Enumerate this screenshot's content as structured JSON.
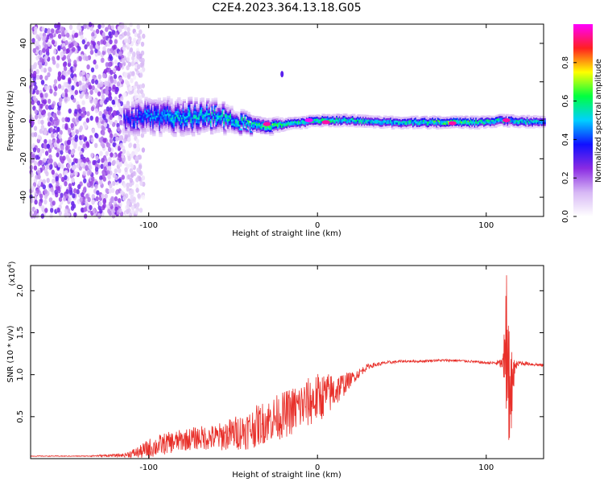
{
  "title": "C2E4.2023.364.13.18.G05",
  "colors": {
    "series": "#e8302a",
    "axis": "#000000",
    "background": "#ffffff"
  },
  "chart_data": [
    {
      "type": "heatmap",
      "title": "C2E4.2023.364.13.18.G05",
      "xlabel": "Height of straight line (km)",
      "ylabel": "Frequency (Hz)",
      "xlim": [
        -170,
        134
      ],
      "ylim": [
        -50,
        50
      ],
      "xticks": [
        -100,
        0,
        100
      ],
      "yticks": [
        -40,
        -20,
        0,
        20,
        40
      ],
      "colorbar": {
        "label": "Normalized spectral amplitude",
        "range": [
          0.0,
          1.0
        ],
        "ticks": [
          "0.0",
          "0.2",
          "0.4",
          "0.6",
          "0.8"
        ],
        "colormap": [
          "#ffffff",
          "#d7b8f5",
          "#8a2be2",
          "#1010ff",
          "#00d0ff",
          "#00ff40",
          "#ffff00",
          "#ff2020",
          "#ff00ff"
        ]
      },
      "noise_region": {
        "x_end": -103,
        "dense_x_end": -115
      },
      "ridge": [
        {
          "x": -115,
          "freq": 1,
          "amplitude": 0.35,
          "halfwidth_hz": 5
        },
        {
          "x": -100,
          "freq": 2,
          "amplitude": 0.45,
          "halfwidth_hz": 6
        },
        {
          "x": -80,
          "freq": 2,
          "amplitude": 0.5,
          "halfwidth_hz": 6
        },
        {
          "x": -60,
          "freq": 2,
          "amplitude": 0.5,
          "halfwidth_hz": 5
        },
        {
          "x": -40,
          "freq": -2,
          "amplitude": 0.55,
          "halfwidth_hz": 3
        },
        {
          "x": -30,
          "freq": -3,
          "amplitude": 0.6,
          "halfwidth_hz": 3
        },
        {
          "x": -20,
          "freq": -2,
          "amplitude": 0.6,
          "halfwidth_hz": 2
        },
        {
          "x": -10,
          "freq": -1,
          "amplitude": 0.55,
          "halfwidth_hz": 2
        },
        {
          "x": 0,
          "freq": 0,
          "amplitude": 0.6,
          "halfwidth_hz": 2
        },
        {
          "x": 20,
          "freq": 0,
          "amplitude": 0.55,
          "halfwidth_hz": 2
        },
        {
          "x": 40,
          "freq": -1,
          "amplitude": 0.5,
          "halfwidth_hz": 2
        },
        {
          "x": 60,
          "freq": -1,
          "amplitude": 0.55,
          "halfwidth_hz": 2
        },
        {
          "x": 80,
          "freq": -1,
          "amplitude": 0.65,
          "halfwidth_hz": 2
        },
        {
          "x": 95,
          "freq": -1,
          "amplitude": 0.55,
          "halfwidth_hz": 2
        },
        {
          "x": 110,
          "freq": 0,
          "amplitude": 0.55,
          "halfwidth_hz": 2
        },
        {
          "x": 134,
          "freq": -1,
          "amplitude": 0.5,
          "halfwidth_hz": 2
        }
      ],
      "hotspots": [
        {
          "x": -30,
          "freq": -2,
          "amplitude": 0.95
        },
        {
          "x": -5,
          "freq": 0,
          "amplitude": 1.0
        },
        {
          "x": 5,
          "freq": -1,
          "amplitude": 0.95
        },
        {
          "x": 80,
          "freq": -1.5,
          "amplitude": 0.95
        },
        {
          "x": 112,
          "freq": 0,
          "amplitude": 0.95
        }
      ],
      "isolated_spot": {
        "x": -21,
        "freq": 24,
        "amplitude": 0.3
      }
    },
    {
      "type": "line",
      "xlabel": "Height of straight line (km)",
      "ylabel": "SNR (10 * v/v)",
      "y_multiplier": "(x10",
      "y_multiplier_exp": "4",
      "y_multiplier_close": ")",
      "xlim": [
        -170,
        134
      ],
      "ylim": [
        0.0,
        2.3
      ],
      "xticks": [
        -100,
        0,
        100
      ],
      "yticks": [
        "0.5",
        "1.0",
        "1.5",
        "2.0"
      ],
      "series": [
        {
          "color": "#e8302a",
          "x": [
            -170,
            -140,
            -115,
            -105,
            -100,
            -90,
            -80,
            -70,
            -60,
            -50,
            -40,
            -30,
            -20,
            -10,
            0,
            10,
            20,
            30,
            40,
            50,
            60,
            70,
            80,
            90,
            100,
            105,
            110,
            112,
            114,
            117,
            120,
            125,
            134
          ],
          "y": [
            0.03,
            0.03,
            0.04,
            0.08,
            0.12,
            0.18,
            0.22,
            0.25,
            0.25,
            0.3,
            0.35,
            0.45,
            0.52,
            0.62,
            0.72,
            0.8,
            0.95,
            1.1,
            1.14,
            1.16,
            1.16,
            1.17,
            1.17,
            1.16,
            1.14,
            1.14,
            1.13,
            1.4,
            0.7,
            1.1,
            1.14,
            1.13,
            1.11
          ],
          "noise": [
            0.005,
            0.005,
            0.02,
            0.08,
            0.12,
            0.13,
            0.13,
            0.14,
            0.16,
            0.2,
            0.24,
            0.26,
            0.28,
            0.3,
            0.3,
            0.22,
            0.08,
            0.03,
            0.02,
            0.015,
            0.015,
            0.015,
            0.015,
            0.015,
            0.015,
            0.02,
            0.08,
            0.85,
            0.65,
            0.05,
            0.03,
            0.02,
            0.02
          ]
        }
      ]
    }
  ]
}
